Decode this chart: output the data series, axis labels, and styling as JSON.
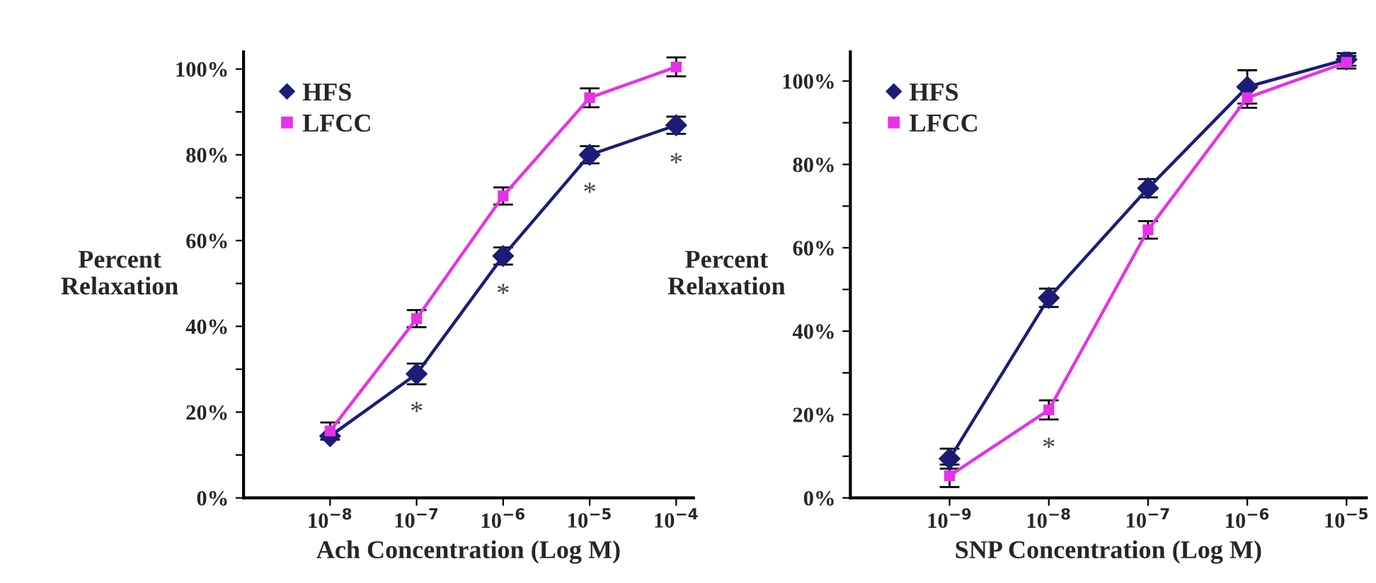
{
  "chart_data": [
    {
      "type": "line",
      "xlabel": "Ach Concentration (Log M)",
      "ylabel": "Percent\nRelaxation",
      "categories": [
        "10$^{−8}$",
        "10$^{−7}$",
        "10$^{−6}$",
        "10$^{−5}$",
        "10$^{−4}$"
      ],
      "series": [
        {
          "name": "HFS",
          "color": "#1c1c78",
          "marker": "diamond",
          "values": [
            14.4,
            28.9,
            56.4,
            80,
            86.9
          ],
          "errors": [
            null,
            2.4,
            2,
            2,
            2
          ]
        },
        {
          "name": "LFCC",
          "color": "#e632e6",
          "marker": "square",
          "values": [
            15.6,
            41.8,
            70.4,
            93.3,
            100.5
          ],
          "errors": [
            2,
            2,
            2,
            2.2,
            2.2
          ]
        }
      ],
      "ylim": [
        0,
        104
      ],
      "yticks": [
        {
          "value": 0,
          "label": "0%"
        },
        {
          "value": 10,
          "label": null
        },
        {
          "value": 20,
          "label": "20%"
        },
        {
          "value": 30,
          "label": null
        },
        {
          "value": 40,
          "label": "40%"
        },
        {
          "value": 50,
          "label": null
        },
        {
          "value": 60,
          "label": "60%"
        },
        {
          "value": 70,
          "label": null
        },
        {
          "value": 80,
          "label": "80%"
        },
        {
          "value": 90,
          "label": null
        },
        {
          "value": 100,
          "label": "100%"
        }
      ],
      "annotations": [
        {
          "text": "*",
          "x": "10$^{−7}$",
          "y": 28.9
        },
        {
          "text": "*",
          "x": "10$^{−6}$",
          "y": 56.4
        },
        {
          "text": "*",
          "x": "10$^{−5}$",
          "y": 80
        },
        {
          "text": "*",
          "x": "10$^{−4}$",
          "y": 86.9
        }
      ],
      "legend": "top left",
      "grid": false,
      "line_style": "solid"
    },
    {
      "type": "line",
      "xlabel": "SNP Concentration (Log M)",
      "ylabel": "Percent\nRelaxation",
      "categories": [
        "10$^{−9}$",
        "10$^{−8}$",
        "10$^{−7}$",
        "10$^{−6}$",
        "10$^{−5}$"
      ],
      "series": [
        {
          "name": "HFS",
          "color": "#1c1c78",
          "marker": "diamond",
          "values": [
            9.4,
            48,
            74.3,
            98.6,
            105.2
          ],
          "errors": [
            2.4,
            2.2,
            2.2,
            4,
            1.5
          ]
        },
        {
          "name": "LFCC",
          "color": "#e632e6",
          "marker": "square",
          "values": [
            5.3,
            21.1,
            64.3,
            96,
            104.5
          ],
          "errors": [
            2.7,
            2.3,
            2.1,
            2.4,
            1.5
          ]
        }
      ],
      "ylim": [
        0,
        107
      ],
      "yticks": [
        {
          "value": 0,
          "label": "0%"
        },
        {
          "value": 10,
          "label": null
        },
        {
          "value": 20,
          "label": "20%"
        },
        {
          "value": 30,
          "label": null
        },
        {
          "value": 40,
          "label": "40%"
        },
        {
          "value": 50,
          "label": null
        },
        {
          "value": 60,
          "label": "60%"
        },
        {
          "value": 70,
          "label": null
        },
        {
          "value": 80,
          "label": "80%"
        },
        {
          "value": 90,
          "label": null
        },
        {
          "value": 100,
          "label": "100%"
        }
      ],
      "annotations": [
        {
          "text": "*",
          "x": "10$^{−8}$",
          "y": 21.1
        }
      ],
      "legend": "top left",
      "grid": false,
      "line_style": "solid"
    }
  ]
}
